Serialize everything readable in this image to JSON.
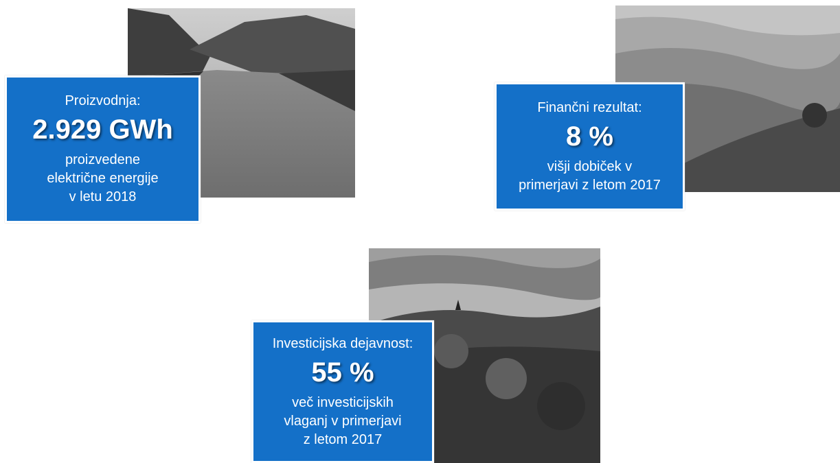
{
  "cards": [
    {
      "label": "Proizvodnja:",
      "value": "2.929 GWh",
      "description": [
        "proizvedene",
        "električne energije",
        "v letu 2018"
      ]
    },
    {
      "label": "Finančni rezultat:",
      "value": "8 %",
      "description": [
        "višji dobiček v",
        "primerjavi z letom 2017"
      ]
    },
    {
      "label": "Investicijska dejavnost:",
      "value": "55 %",
      "description": [
        "več investicijskih",
        "vlaganj v primerjavi",
        "z letom 2017"
      ]
    }
  ]
}
